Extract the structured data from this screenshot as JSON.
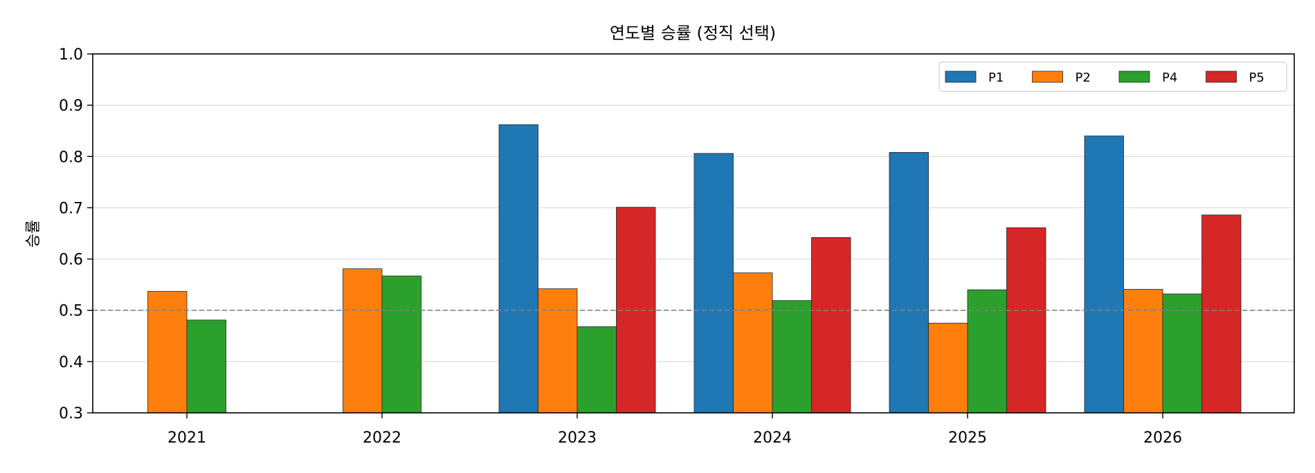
{
  "chart_data": {
    "type": "bar",
    "title": "연도별 승률 (정직 선택)",
    "xlabel": "",
    "ylabel": "승률",
    "ylim": [
      0.3,
      1.0
    ],
    "yticks": [
      "0.3",
      "0.4",
      "0.5",
      "0.6",
      "0.7",
      "0.8",
      "0.9",
      "1.0"
    ],
    "categories": [
      "2021",
      "2022",
      "2023",
      "2024",
      "2025",
      "2026"
    ],
    "reference_line": 0.5,
    "grid": "horizontal",
    "legend_position": "top-right",
    "series": [
      {
        "name": "P1",
        "color": "#1f77b4",
        "values": [
          null,
          null,
          0.862,
          0.806,
          0.808,
          0.84
        ]
      },
      {
        "name": "P2",
        "color": "#ff7f0e",
        "values": [
          0.537,
          0.581,
          0.542,
          0.573,
          0.475,
          0.541
        ]
      },
      {
        "name": "P4",
        "color": "#2ca02c",
        "values": [
          0.481,
          0.567,
          0.468,
          0.519,
          0.54,
          0.532
        ]
      },
      {
        "name": "P5",
        "color": "#d62728",
        "values": [
          null,
          null,
          0.701,
          0.642,
          0.661,
          0.686
        ]
      }
    ]
  }
}
